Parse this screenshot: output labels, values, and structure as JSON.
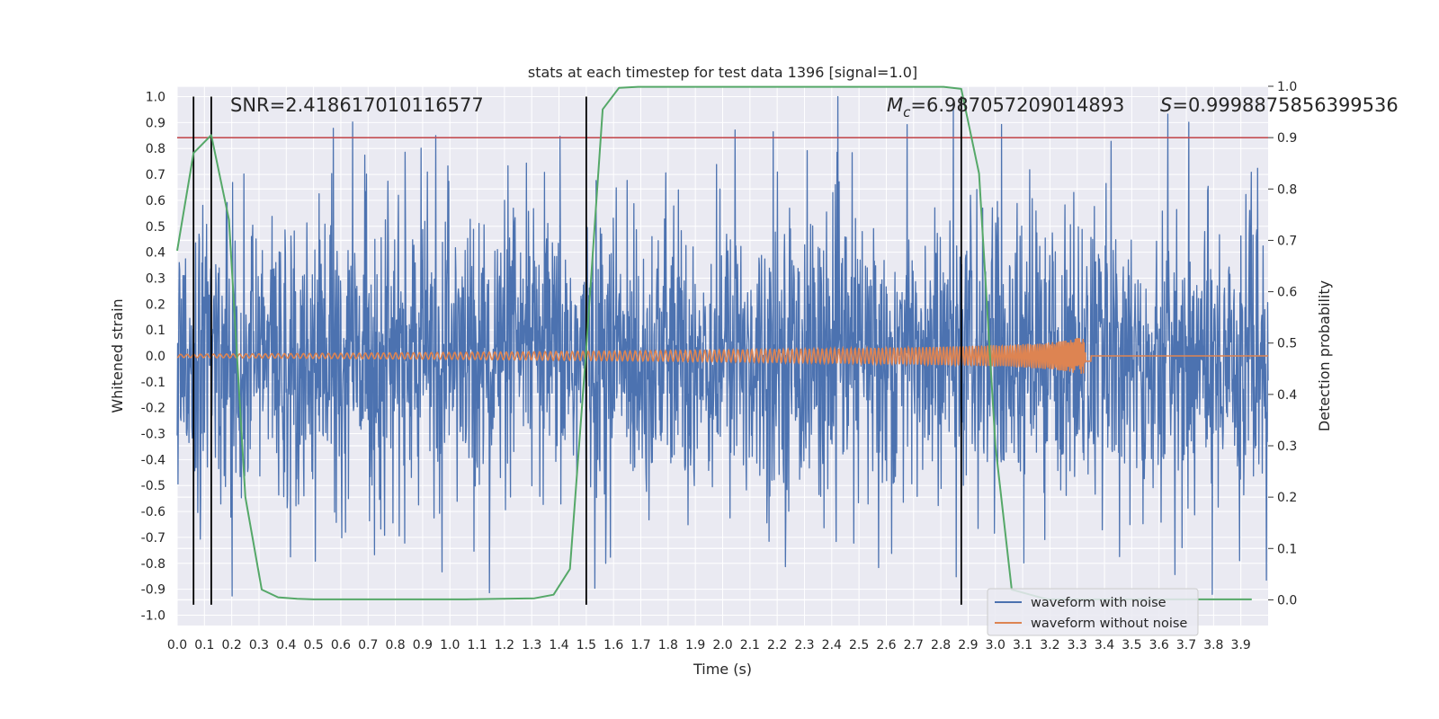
{
  "chart_data": {
    "type": "line",
    "title": "stats at each timestep for test data 1396 [signal=1.0]",
    "xlabel": "Time (s)",
    "ylabel": "Whitened strain",
    "y2label": "Detection probability",
    "xlim": [
      0.0,
      4.0
    ],
    "ylim": [
      -1.04,
      1.04
    ],
    "y2lim": [
      -0.05,
      1.0
    ],
    "x_ticks": [
      "0.0",
      "0.1",
      "0.2",
      "0.3",
      "0.4",
      "0.5",
      "0.6",
      "0.7",
      "0.8",
      "0.9",
      "1.0",
      "1.1",
      "1.2",
      "1.3",
      "1.4",
      "1.5",
      "1.6",
      "1.7",
      "1.8",
      "1.9",
      "2.0",
      "2.1",
      "2.2",
      "2.3",
      "2.4",
      "2.5",
      "2.6",
      "2.7",
      "2.8",
      "2.9",
      "3.0",
      "3.1",
      "3.2",
      "3.3",
      "3.4",
      "3.5",
      "3.6",
      "3.7",
      "3.8",
      "3.9"
    ],
    "y_ticks": [
      "1.0",
      "0.9",
      "0.8",
      "0.7",
      "0.6",
      "0.5",
      "0.4",
      "0.3",
      "0.2",
      "0.1",
      "0.0",
      "-0.1",
      "-0.2",
      "-0.3",
      "-0.4",
      "-0.5",
      "-0.6",
      "-0.7",
      "-0.8",
      "-0.9",
      "-1.0"
    ],
    "y2_ticks": [
      "1.0",
      "0.9",
      "0.8",
      "0.7",
      "0.6",
      "0.5",
      "0.4",
      "0.3",
      "0.2",
      "0.1",
      "0.0"
    ],
    "annotations": {
      "snr": "SNR=2.418617010116577",
      "mc_symbol": "M",
      "mc_sub": "c",
      "mc_value": "=6.987057209014893",
      "s_symbol": "S",
      "s_value": "=0.9998875856399536"
    },
    "threshold": {
      "y2": 0.9,
      "color": "#c44e52"
    },
    "vlines_x": [
      0.06,
      0.125,
      1.5,
      2.875
    ],
    "legend": {
      "placement": "lower-right",
      "entries": [
        {
          "label": "waveform with noise",
          "color": "#4c72b0"
        },
        {
          "label": "waveform without noise",
          "color": "#dd8452"
        }
      ]
    },
    "series": [
      {
        "name": "waveform with noise",
        "color": "#4c72b0",
        "kind": "noise",
        "amplitude_range": [
          -0.93,
          1.0
        ]
      },
      {
        "name": "waveform without noise",
        "color": "#dd8452",
        "kind": "chirp",
        "x_end": 3.35,
        "amplitude_max": 0.07
      },
      {
        "name": "detection probability",
        "color": "#55a868",
        "axis": "y2",
        "x": [
          0.0,
          0.06,
          0.125,
          0.19,
          0.25,
          0.31,
          0.37,
          0.44,
          0.5,
          0.69,
          0.81,
          0.94,
          1.06,
          1.19,
          1.31,
          1.38,
          1.44,
          1.5,
          1.56,
          1.62,
          1.69,
          1.88,
          2.25,
          2.62,
          2.81,
          2.875,
          2.94,
          3.0,
          3.06,
          3.19,
          3.5,
          3.94
        ],
        "y": [
          0.68,
          0.87,
          0.905,
          0.74,
          0.2,
          0.02,
          0.005,
          0.002,
          0.001,
          0.001,
          0.001,
          0.001,
          0.001,
          0.002,
          0.003,
          0.01,
          0.06,
          0.49,
          0.955,
          0.997,
          0.999,
          0.999,
          0.999,
          0.999,
          0.999,
          0.995,
          0.83,
          0.3,
          0.02,
          0.001,
          0.001,
          0.001
        ]
      }
    ],
    "grid": true
  }
}
